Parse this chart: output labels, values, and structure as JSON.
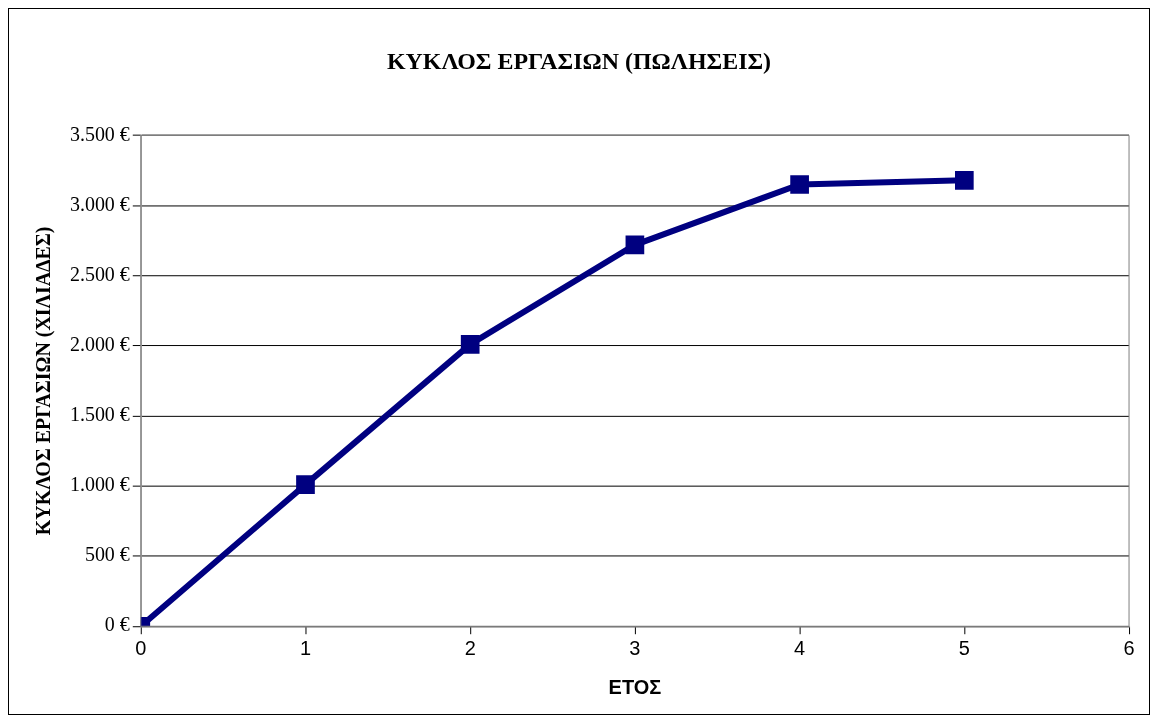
{
  "chart_data": {
    "type": "line",
    "title": "ΚΥΚΛΟΣ ΕΡΓΑΣΙΩΝ (ΠΩΛΗΣΕΙΣ)",
    "xlabel": "ΕΤΟΣ",
    "ylabel": "ΚΥΚΛΟΣ ΕΡΓΑΣΙΩΝ (ΧΙΛΙΑΔΕΣ)",
    "x": [
      0,
      1,
      2,
      3,
      4,
      5
    ],
    "series": [
      {
        "color": "#000080",
        "values": [
          0,
          1010,
          2010,
          2720,
          3150,
          3180
        ]
      }
    ],
    "xlim": [
      0,
      6
    ],
    "xticks": [
      0,
      1,
      2,
      3,
      4,
      5,
      6
    ],
    "ylim": [
      0,
      3500
    ],
    "yticks": [
      {
        "value": 0,
        "label": "0 €"
      },
      {
        "value": 500,
        "label": "500 €"
      },
      {
        "value": 1000,
        "label": "1.000 €"
      },
      {
        "value": 1500,
        "label": "1.500 €"
      },
      {
        "value": 2000,
        "label": "2.000 €"
      },
      {
        "value": 2500,
        "label": "2.500 €"
      },
      {
        "value": 3000,
        "label": "3.000 €"
      },
      {
        "value": 3500,
        "label": "3.500 €"
      }
    ],
    "grid": "y",
    "legend": false,
    "marker": "square",
    "line_style": "solid"
  }
}
